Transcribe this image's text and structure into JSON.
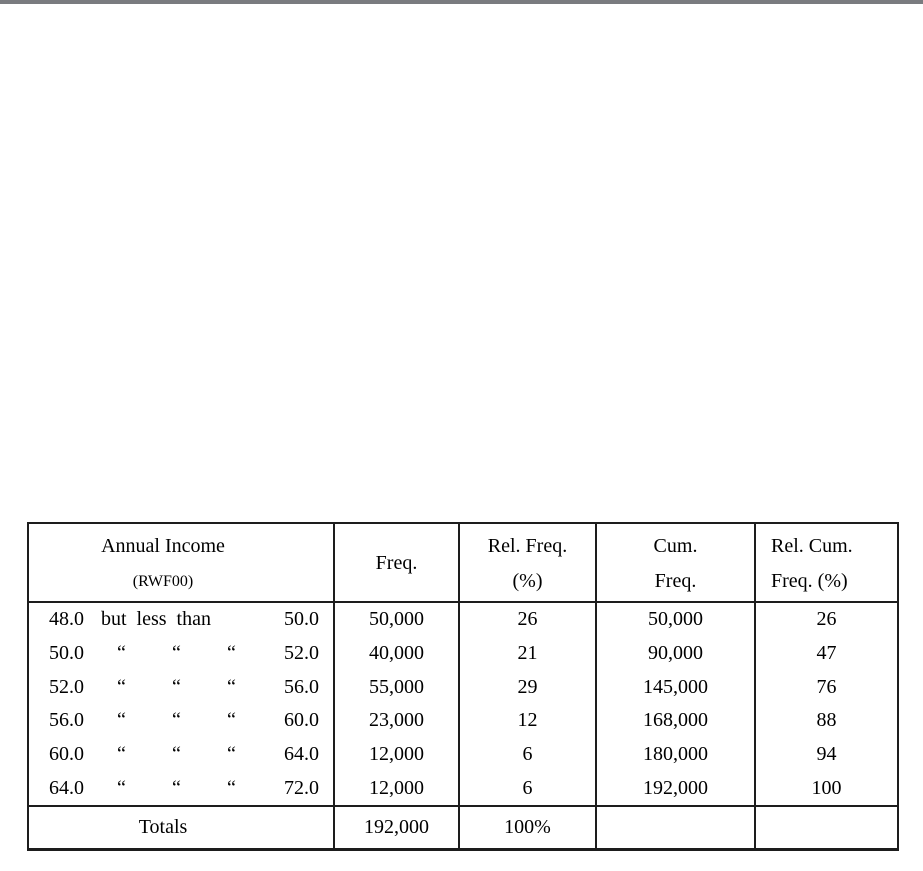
{
  "page": {
    "top_bar_color": "#7a7b7f",
    "background": "#ffffff",
    "border_color": "#1d1d1d"
  },
  "table": {
    "header": {
      "col1_line1": "Annual Income",
      "col1_line2": "(RWF00)",
      "col2": "Freq.",
      "col3_line1": "Rel. Freq.",
      "col3_line2": "(%)",
      "col4_line1": "Cum.",
      "col4_line2": "Freq.",
      "col5_line1": "Rel. Cum.",
      "col5_line2": "Freq. (%)"
    },
    "ditto": "“",
    "connector": "but less than",
    "rows": [
      {
        "lower": "48.0",
        "upper": "50.0",
        "freq": "50,000",
        "rel_freq": "26",
        "cum_freq": "50,000",
        "rel_cum_freq": "26"
      },
      {
        "lower": "50.0",
        "upper": "52.0",
        "freq": "40,000",
        "rel_freq": "21",
        "cum_freq": "90,000",
        "rel_cum_freq": "47"
      },
      {
        "lower": "52.0",
        "upper": "56.0",
        "freq": "55,000",
        "rel_freq": "29",
        "cum_freq": "145,000",
        "rel_cum_freq": "76"
      },
      {
        "lower": "56.0",
        "upper": "60.0",
        "freq": "23,000",
        "rel_freq": "12",
        "cum_freq": "168,000",
        "rel_cum_freq": "88"
      },
      {
        "lower": "60.0",
        "upper": "64.0",
        "freq": "12,000",
        "rel_freq": "6",
        "cum_freq": "180,000",
        "rel_cum_freq": "94"
      },
      {
        "lower": "64.0",
        "upper": "72.0",
        "freq": "12,000",
        "rel_freq": "6",
        "cum_freq": "192,000",
        "rel_cum_freq": "100"
      }
    ],
    "totals": {
      "label": "Totals",
      "freq": "192,000",
      "rel_freq": "100%",
      "cum_freq": "",
      "rel_cum_freq": ""
    }
  }
}
